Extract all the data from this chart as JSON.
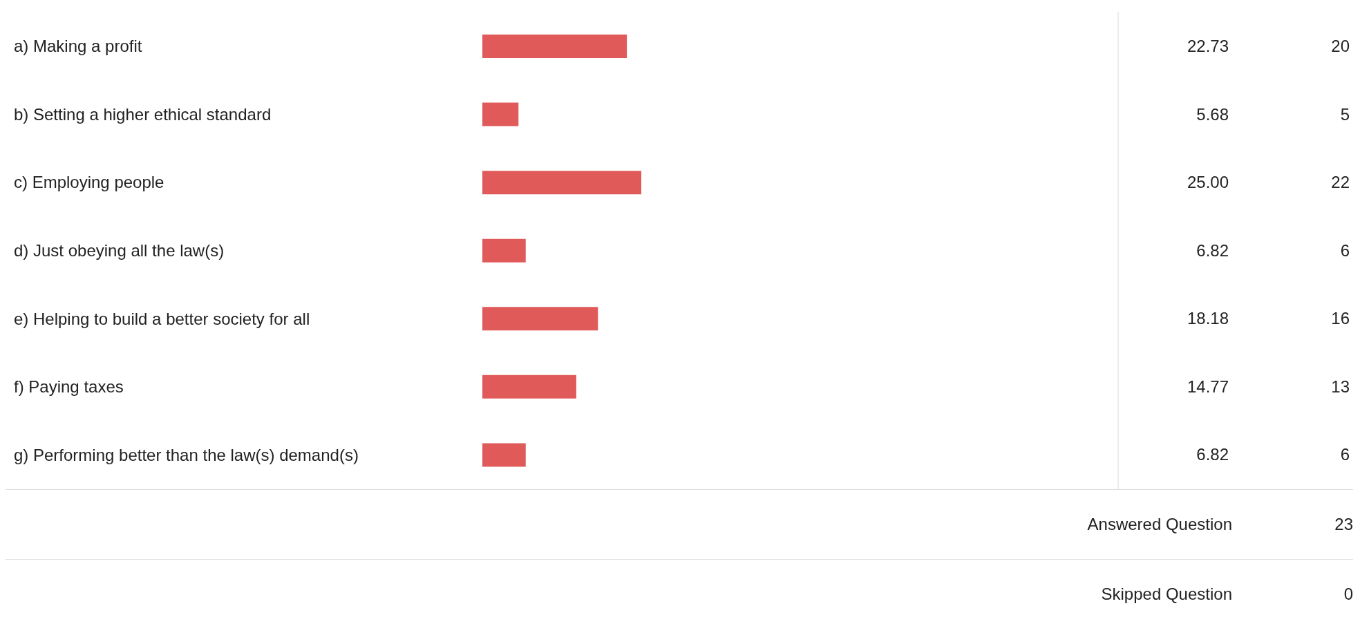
{
  "chart_data": {
    "type": "bar",
    "orientation": "horizontal",
    "categories": [
      "a) Making a profit",
      "b) Setting a higher ethical standard",
      "c) Employing people",
      "d) Just obeying all the law(s)",
      "e) Helping to build a better society for all",
      "f) Paying taxes",
      "g) Performing better than the law(s) demand(s)"
    ],
    "values": [
      22.73,
      5.68,
      25.0,
      6.82,
      18.18,
      14.77,
      6.82
    ],
    "value_labels": [
      "22.73",
      "5.68",
      "25.00",
      "6.82",
      "18.18",
      "14.77",
      "6.82"
    ],
    "color": "#e05a5a",
    "xlim": [
      0,
      100
    ],
    "tick_labels": "y",
    "annotations": [
      "20",
      "5",
      "22",
      "6",
      "16",
      "13",
      "6",
      "Answered Question",
      "23",
      "Skipped Question",
      "0"
    ]
  }
}
